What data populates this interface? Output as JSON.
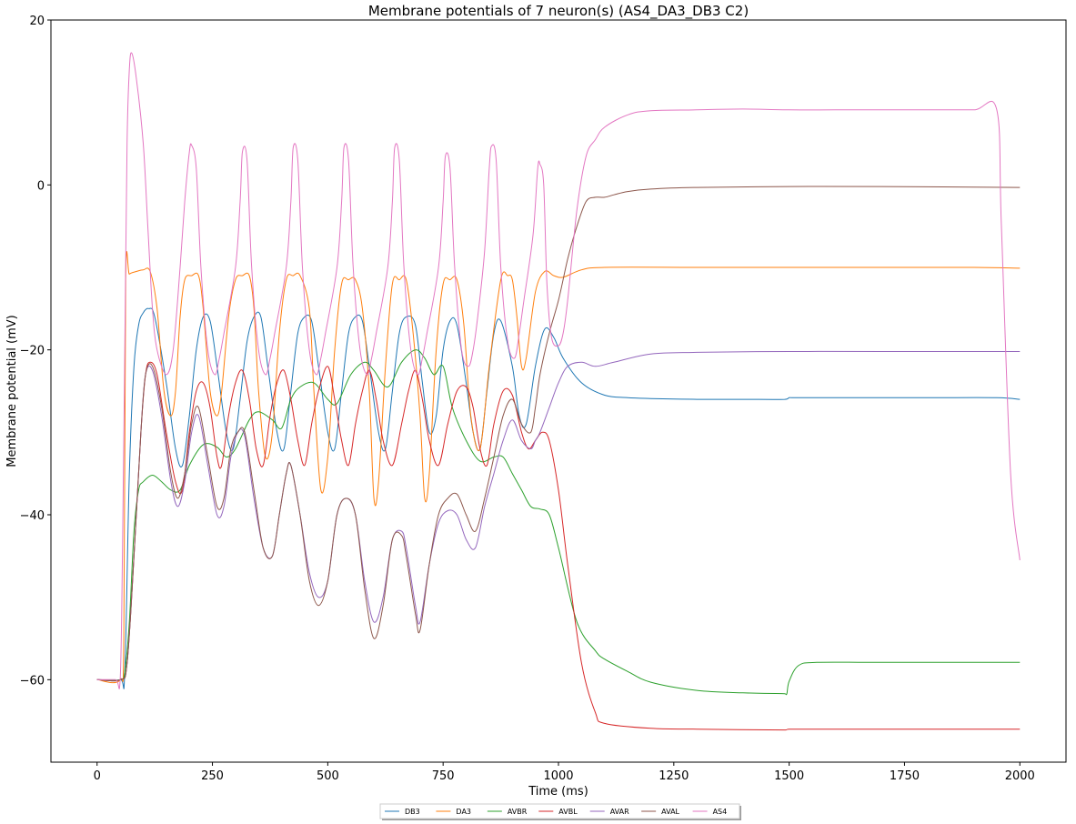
{
  "chart_data": {
    "type": "line",
    "title": "Membrane potentials of 7 neuron(s) (AS4_DA3_DB3 C2)",
    "xlabel": "Time (ms)",
    "ylabel": "Membrane potential (mV)",
    "xlim": [
      -100,
      2100
    ],
    "ylim": [
      -70,
      20
    ],
    "xticks": [
      0,
      250,
      500,
      750,
      1000,
      1250,
      1500,
      1750,
      2000
    ],
    "yticks": [
      -60,
      -40,
      -20,
      0,
      20
    ],
    "xtick_labels": [
      "0",
      "250",
      "500",
      "750",
      "1000",
      "1250",
      "1500",
      "1750",
      "2000"
    ],
    "ytick_labels": [
      "−60",
      "−40",
      "−20",
      "0",
      "20"
    ],
    "legend_position": "bottom-center",
    "grid": false,
    "series": [
      {
        "name": "DB3",
        "color": "#1f77b4",
        "x": [
          0,
          50,
          60,
          70,
          80,
          90,
          100,
          112,
          125,
          150,
          170,
          185,
          200,
          215,
          230,
          245,
          260,
          280,
          295,
          310,
          325,
          340,
          355,
          370,
          390,
          405,
          420,
          435,
          450,
          465,
          480,
          500,
          515,
          530,
          545,
          560,
          575,
          590,
          610,
          625,
          640,
          655,
          670,
          690,
          705,
          720,
          735,
          750,
          765,
          780,
          800,
          815,
          830,
          845,
          860,
          875,
          900,
          915,
          930,
          950,
          970,
          990,
          1010,
          1050,
          1100,
          1150,
          1200,
          1300,
          1400,
          1490,
          1500,
          1510,
          1600,
          1800,
          1950,
          2000
        ],
        "y": [
          -60,
          -60,
          -59,
          -35,
          -22,
          -17,
          -15.5,
          -15,
          -16,
          -24,
          -32,
          -34,
          -28,
          -20,
          -16,
          -16.5,
          -22,
          -30,
          -32,
          -26,
          -19,
          -16,
          -16,
          -22,
          -30,
          -32,
          -25,
          -18,
          -16,
          -16.5,
          -22,
          -30,
          -32,
          -25,
          -18,
          -16,
          -16.5,
          -22,
          -30,
          -32,
          -25,
          -18,
          -16,
          -17,
          -24,
          -30,
          -28,
          -20,
          -16.5,
          -17,
          -24,
          -30,
          -32,
          -25,
          -18,
          -16.5,
          -22,
          -28,
          -29,
          -22,
          -17.5,
          -18.5,
          -21,
          -24,
          -25.5,
          -25.8,
          -25.9,
          -26,
          -26,
          -26,
          -25.8,
          -25.8,
          -25.8,
          -25.8,
          -25.8,
          -26
        ]
      },
      {
        "name": "DA3",
        "color": "#ff7f0e",
        "x": [
          0,
          50,
          58,
          62,
          70,
          85,
          100,
          115,
          130,
          145,
          160,
          170,
          180,
          190,
          205,
          220,
          230,
          245,
          260,
          270,
          285,
          300,
          315,
          330,
          340,
          350,
          365,
          380,
          395,
          410,
          425,
          440,
          460,
          470,
          485,
          500,
          515,
          530,
          545,
          560,
          575,
          590,
          600,
          610,
          625,
          640,
          655,
          670,
          685,
          700,
          710,
          720,
          735,
          750,
          765,
          780,
          795,
          810,
          830,
          850,
          875,
          890,
          900,
          910,
          920,
          930,
          950,
          970,
          990,
          1010,
          1050,
          1100,
          1300,
          1500,
          1700,
          1900,
          2000
        ],
        "y": [
          -60,
          -60,
          -55,
          -11.5,
          -10.8,
          -10.5,
          -10.3,
          -10.5,
          -15,
          -25,
          -28,
          -25,
          -16,
          -11.5,
          -11,
          -11,
          -15,
          -25,
          -28,
          -25,
          -16,
          -11.5,
          -11,
          -11,
          -15,
          -25,
          -33,
          -30,
          -18,
          -11.5,
          -11,
          -11,
          -15,
          -25,
          -37,
          -33,
          -20,
          -12,
          -11.5,
          -11.5,
          -15,
          -25,
          -38,
          -36,
          -22,
          -12,
          -11.5,
          -11.5,
          -18,
          -28,
          -38,
          -35,
          -20,
          -12,
          -11.5,
          -11.5,
          -17,
          -28,
          -32,
          -22,
          -11.5,
          -11,
          -11.5,
          -16,
          -22,
          -21,
          -13,
          -10.5,
          -11,
          -11.2,
          -10.3,
          -10,
          -10,
          -10,
          -10,
          -10,
          -10.1
        ]
      },
      {
        "name": "AVBR",
        "color": "#2ca02c",
        "x": [
          0,
          50,
          60,
          70,
          80,
          90,
          100,
          120,
          140,
          160,
          180,
          200,
          230,
          260,
          280,
          300,
          330,
          350,
          380,
          400,
          420,
          440,
          470,
          500,
          520,
          550,
          580,
          600,
          630,
          660,
          690,
          710,
          730,
          750,
          770,
          800,
          830,
          860,
          880,
          900,
          920,
          940,
          960,
          980,
          1000,
          1040,
          1080,
          1100,
          1150,
          1200,
          1300,
          1400,
          1490,
          1495,
          1500,
          1520,
          1560,
          1700,
          2000
        ],
        "y": [
          -60,
          -60,
          -59,
          -53,
          -42,
          -37,
          -36,
          -35.2,
          -36,
          -37,
          -37,
          -34,
          -31.5,
          -31.8,
          -33,
          -32,
          -28.5,
          -27.5,
          -28.5,
          -29.5,
          -26,
          -24.5,
          -24,
          -26,
          -26.5,
          -23,
          -21.5,
          -22.5,
          -24.5,
          -21.5,
          -20,
          -21,
          -23,
          -22,
          -27,
          -31,
          -33.5,
          -33,
          -33,
          -35,
          -37,
          -39,
          -39.3,
          -40,
          -44,
          -53,
          -56.5,
          -57.5,
          -59,
          -60.3,
          -61.3,
          -61.6,
          -61.7,
          -61.7,
          -60.2,
          -58.3,
          -57.9,
          -57.9,
          -57.9
        ]
      },
      {
        "name": "AVBL",
        "color": "#d62728",
        "x": [
          0,
          50,
          65,
          80,
          95,
          105,
          115,
          130,
          150,
          170,
          185,
          200,
          215,
          230,
          245,
          260,
          270,
          285,
          300,
          315,
          330,
          345,
          360,
          375,
          390,
          405,
          420,
          435,
          450,
          465,
          480,
          500,
          515,
          530,
          545,
          560,
          575,
          590,
          605,
          620,
          640,
          660,
          675,
          690,
          705,
          720,
          740,
          760,
          780,
          800,
          815,
          830,
          845,
          860,
          880,
          900,
          920,
          935,
          950,
          965,
          980,
          1000,
          1020,
          1050,
          1080,
          1100,
          1200,
          1300,
          1490,
          1500,
          1700,
          2000
        ],
        "y": [
          -60,
          -60,
          -58,
          -45,
          -30,
          -23,
          -21.5,
          -23,
          -30,
          -36,
          -37,
          -30,
          -25,
          -24,
          -27,
          -33,
          -34,
          -28,
          -24,
          -22.5,
          -26,
          -32,
          -34,
          -28,
          -24,
          -22.5,
          -26,
          -31,
          -34,
          -29,
          -25,
          -22,
          -26,
          -31,
          -34,
          -29,
          -25,
          -22.5,
          -26,
          -31,
          -34,
          -29,
          -25,
          -22.5,
          -26,
          -31,
          -34,
          -29,
          -25,
          -24.5,
          -27,
          -32,
          -34,
          -29,
          -25,
          -25.5,
          -30,
          -32,
          -31,
          -30,
          -31,
          -37,
          -46,
          -58,
          -64,
          -65.3,
          -65.9,
          -66,
          -66.1,
          -66,
          -66,
          -66
        ]
      },
      {
        "name": "AVAR",
        "color": "#9467bd",
        "x": [
          0,
          50,
          65,
          80,
          95,
          105,
          120,
          140,
          160,
          175,
          190,
          205,
          220,
          240,
          260,
          275,
          290,
          305,
          320,
          340,
          360,
          380,
          395,
          410,
          420,
          440,
          460,
          480,
          500,
          520,
          540,
          560,
          580,
          600,
          620,
          640,
          660,
          670,
          690,
          700,
          720,
          740,
          760,
          780,
          800,
          820,
          840,
          860,
          880,
          900,
          920,
          940,
          950,
          960,
          980,
          1000,
          1020,
          1050,
          1080,
          1120,
          1200,
          1300,
          1500,
          1700,
          2000
        ],
        "y": [
          -60,
          -60,
          -58,
          -45,
          -30,
          -23,
          -22.5,
          -28,
          -36,
          -39,
          -36,
          -30,
          -28,
          -34,
          -40,
          -39,
          -33,
          -30,
          -30.5,
          -38,
          -44,
          -45,
          -40,
          -35,
          -34,
          -40,
          -47,
          -50,
          -48,
          -40,
          -38,
          -40,
          -48,
          -53,
          -50,
          -43,
          -42,
          -44,
          -51,
          -53,
          -46,
          -41,
          -39.5,
          -40,
          -43,
          -44,
          -39,
          -35,
          -31,
          -28.5,
          -31,
          -32,
          -31,
          -30,
          -27,
          -24,
          -22,
          -21.5,
          -22,
          -21.5,
          -20.5,
          -20.3,
          -20.2,
          -20.2,
          -20.2
        ]
      },
      {
        "name": "AVAL",
        "color": "#8c564b",
        "x": [
          0,
          50,
          65,
          80,
          95,
          105,
          120,
          140,
          160,
          175,
          190,
          205,
          220,
          240,
          260,
          275,
          290,
          305,
          320,
          340,
          360,
          380,
          395,
          410,
          420,
          440,
          460,
          480,
          500,
          520,
          540,
          560,
          580,
          600,
          620,
          640,
          660,
          670,
          690,
          700,
          720,
          740,
          760,
          780,
          800,
          820,
          840,
          860,
          880,
          900,
          920,
          940,
          950,
          960,
          980,
          1000,
          1020,
          1040,
          1060,
          1080,
          1100,
          1120,
          1150,
          1200,
          1300,
          1500,
          1700,
          2000
        ],
        "y": [
          -60,
          -60,
          -58,
          -45,
          -30,
          -23,
          -22,
          -27,
          -35,
          -38,
          -35,
          -29,
          -27,
          -33,
          -39,
          -38,
          -32,
          -30,
          -30,
          -37,
          -44,
          -45,
          -40,
          -35,
          -34,
          -40,
          -48,
          -51,
          -48,
          -40,
          -38,
          -40,
          -49,
          -55,
          -51,
          -43,
          -42.5,
          -45,
          -52,
          -54,
          -46,
          -40,
          -38,
          -37.5,
          -40,
          -42,
          -38,
          -33,
          -28,
          -26,
          -29,
          -30,
          -27,
          -23,
          -18,
          -14,
          -9,
          -5,
          -2,
          -1.5,
          -1.5,
          -1.2,
          -0.8,
          -0.5,
          -0.3,
          -0.2,
          -0.2,
          -0.3
        ]
      },
      {
        "name": "AS4",
        "color": "#e377c2",
        "x": [
          0,
          40,
          50,
          55,
          60,
          65,
          70,
          75,
          85,
          100,
          110,
          120,
          130,
          150,
          165,
          180,
          190,
          200,
          205,
          215,
          225,
          240,
          255,
          265,
          275,
          300,
          310,
          315,
          325,
          335,
          350,
          365,
          375,
          385,
          410,
          420,
          425,
          435,
          445,
          460,
          475,
          485,
          495,
          520,
          530,
          535,
          545,
          555,
          570,
          585,
          595,
          605,
          630,
          640,
          645,
          655,
          665,
          680,
          695,
          705,
          715,
          740,
          750,
          755,
          765,
          775,
          790,
          805,
          815,
          825,
          840,
          850,
          855,
          865,
          875,
          890,
          905,
          915,
          925,
          945,
          955,
          960,
          968,
          975,
          985,
          1000,
          1010,
          1020,
          1040,
          1060,
          1080,
          1100,
          1150,
          1200,
          1300,
          1400,
          1500,
          1600,
          1700,
          1800,
          1900,
          1950,
          1960,
          1980,
          2000
        ],
        "y": [
          -60,
          -60,
          -60,
          -45,
          -20,
          5,
          14,
          16,
          13,
          5,
          -5,
          -15,
          -20,
          -23,
          -20,
          -10,
          -2,
          4,
          4.8,
          2,
          -10,
          -20,
          -23,
          -21,
          -18,
          -10,
          -2,
          4,
          3,
          -10,
          -20,
          -23,
          -21,
          -18,
          -10,
          -2,
          4.5,
          3,
          -10,
          -20,
          -23,
          -21,
          -18,
          -10,
          -2,
          4.5,
          3,
          -10,
          -20,
          -23,
          -21,
          -18,
          -10,
          -2,
          4.5,
          3,
          -10,
          -20,
          -23,
          -21,
          -18,
          -10,
          -2,
          3.5,
          2,
          -10,
          -20,
          -22,
          -20,
          -16,
          -8,
          2,
          4.7,
          3,
          -10,
          -19,
          -21,
          -18,
          -14,
          -6,
          2,
          2.5,
          0,
          -12,
          -18.5,
          -19.5,
          -18,
          -14,
          -3,
          3.5,
          5.5,
          7,
          8.5,
          9,
          9.1,
          9.2,
          9.1,
          9.1,
          9.1,
          9.1,
          9.1,
          9.1,
          -5,
          -35,
          -45.5
        ]
      }
    ]
  }
}
